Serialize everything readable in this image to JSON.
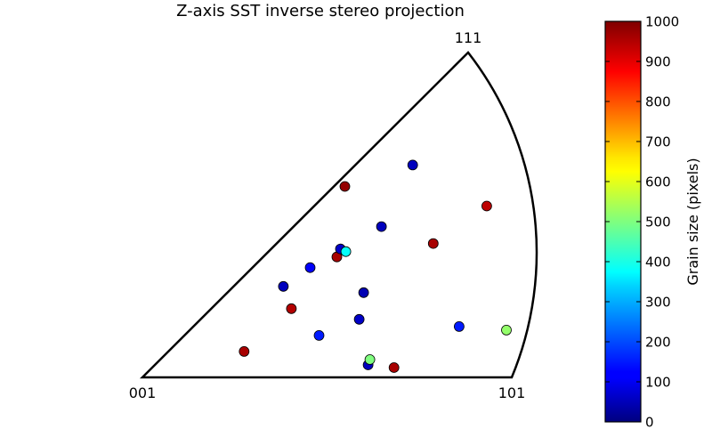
{
  "chart_data": {
    "type": "scatter",
    "title": "Z-axis SST inverse stereo projection",
    "corner_labels": {
      "origin": "001",
      "right": "101",
      "top": "111"
    },
    "colorbar": {
      "label": "Grain size (pixels)",
      "colormap": "jet",
      "range": [
        0,
        1000
      ],
      "ticks": [
        0,
        100,
        200,
        300,
        400,
        500,
        600,
        700,
        800,
        900,
        1000
      ]
    },
    "axis_ranges": {
      "x": [
        0.0,
        0.414
      ],
      "y": [
        0.0,
        0.366
      ]
    },
    "grid": false,
    "legend": "none",
    "points": [
      {
        "x": 0.114,
        "y": 0.029,
        "grain_size": 960
      },
      {
        "x": 0.158,
        "y": 0.102,
        "grain_size": 60
      },
      {
        "x": 0.167,
        "y": 0.077,
        "grain_size": 950
      },
      {
        "x": 0.188,
        "y": 0.123,
        "grain_size": 120
      },
      {
        "x": 0.198,
        "y": 0.047,
        "grain_size": 150
      },
      {
        "x": 0.218,
        "y": 0.135,
        "grain_size": 960
      },
      {
        "x": 0.222,
        "y": 0.144,
        "grain_size": 70
      },
      {
        "x": 0.227,
        "y": 0.214,
        "grain_size": 980
      },
      {
        "x": 0.228,
        "y": 0.141,
        "grain_size": 380
      },
      {
        "x": 0.243,
        "y": 0.065,
        "grain_size": 70
      },
      {
        "x": 0.248,
        "y": 0.095,
        "grain_size": 50
      },
      {
        "x": 0.253,
        "y": 0.014,
        "grain_size": 60
      },
      {
        "x": 0.255,
        "y": 0.02,
        "grain_size": 500
      },
      {
        "x": 0.268,
        "y": 0.169,
        "grain_size": 60
      },
      {
        "x": 0.282,
        "y": 0.011,
        "grain_size": 960
      },
      {
        "x": 0.303,
        "y": 0.238,
        "grain_size": 60
      },
      {
        "x": 0.326,
        "y": 0.15,
        "grain_size": 960
      },
      {
        "x": 0.355,
        "y": 0.057,
        "grain_size": 150
      },
      {
        "x": 0.386,
        "y": 0.192,
        "grain_size": 940
      },
      {
        "x": 0.408,
        "y": 0.053,
        "grain_size": 520
      }
    ]
  }
}
